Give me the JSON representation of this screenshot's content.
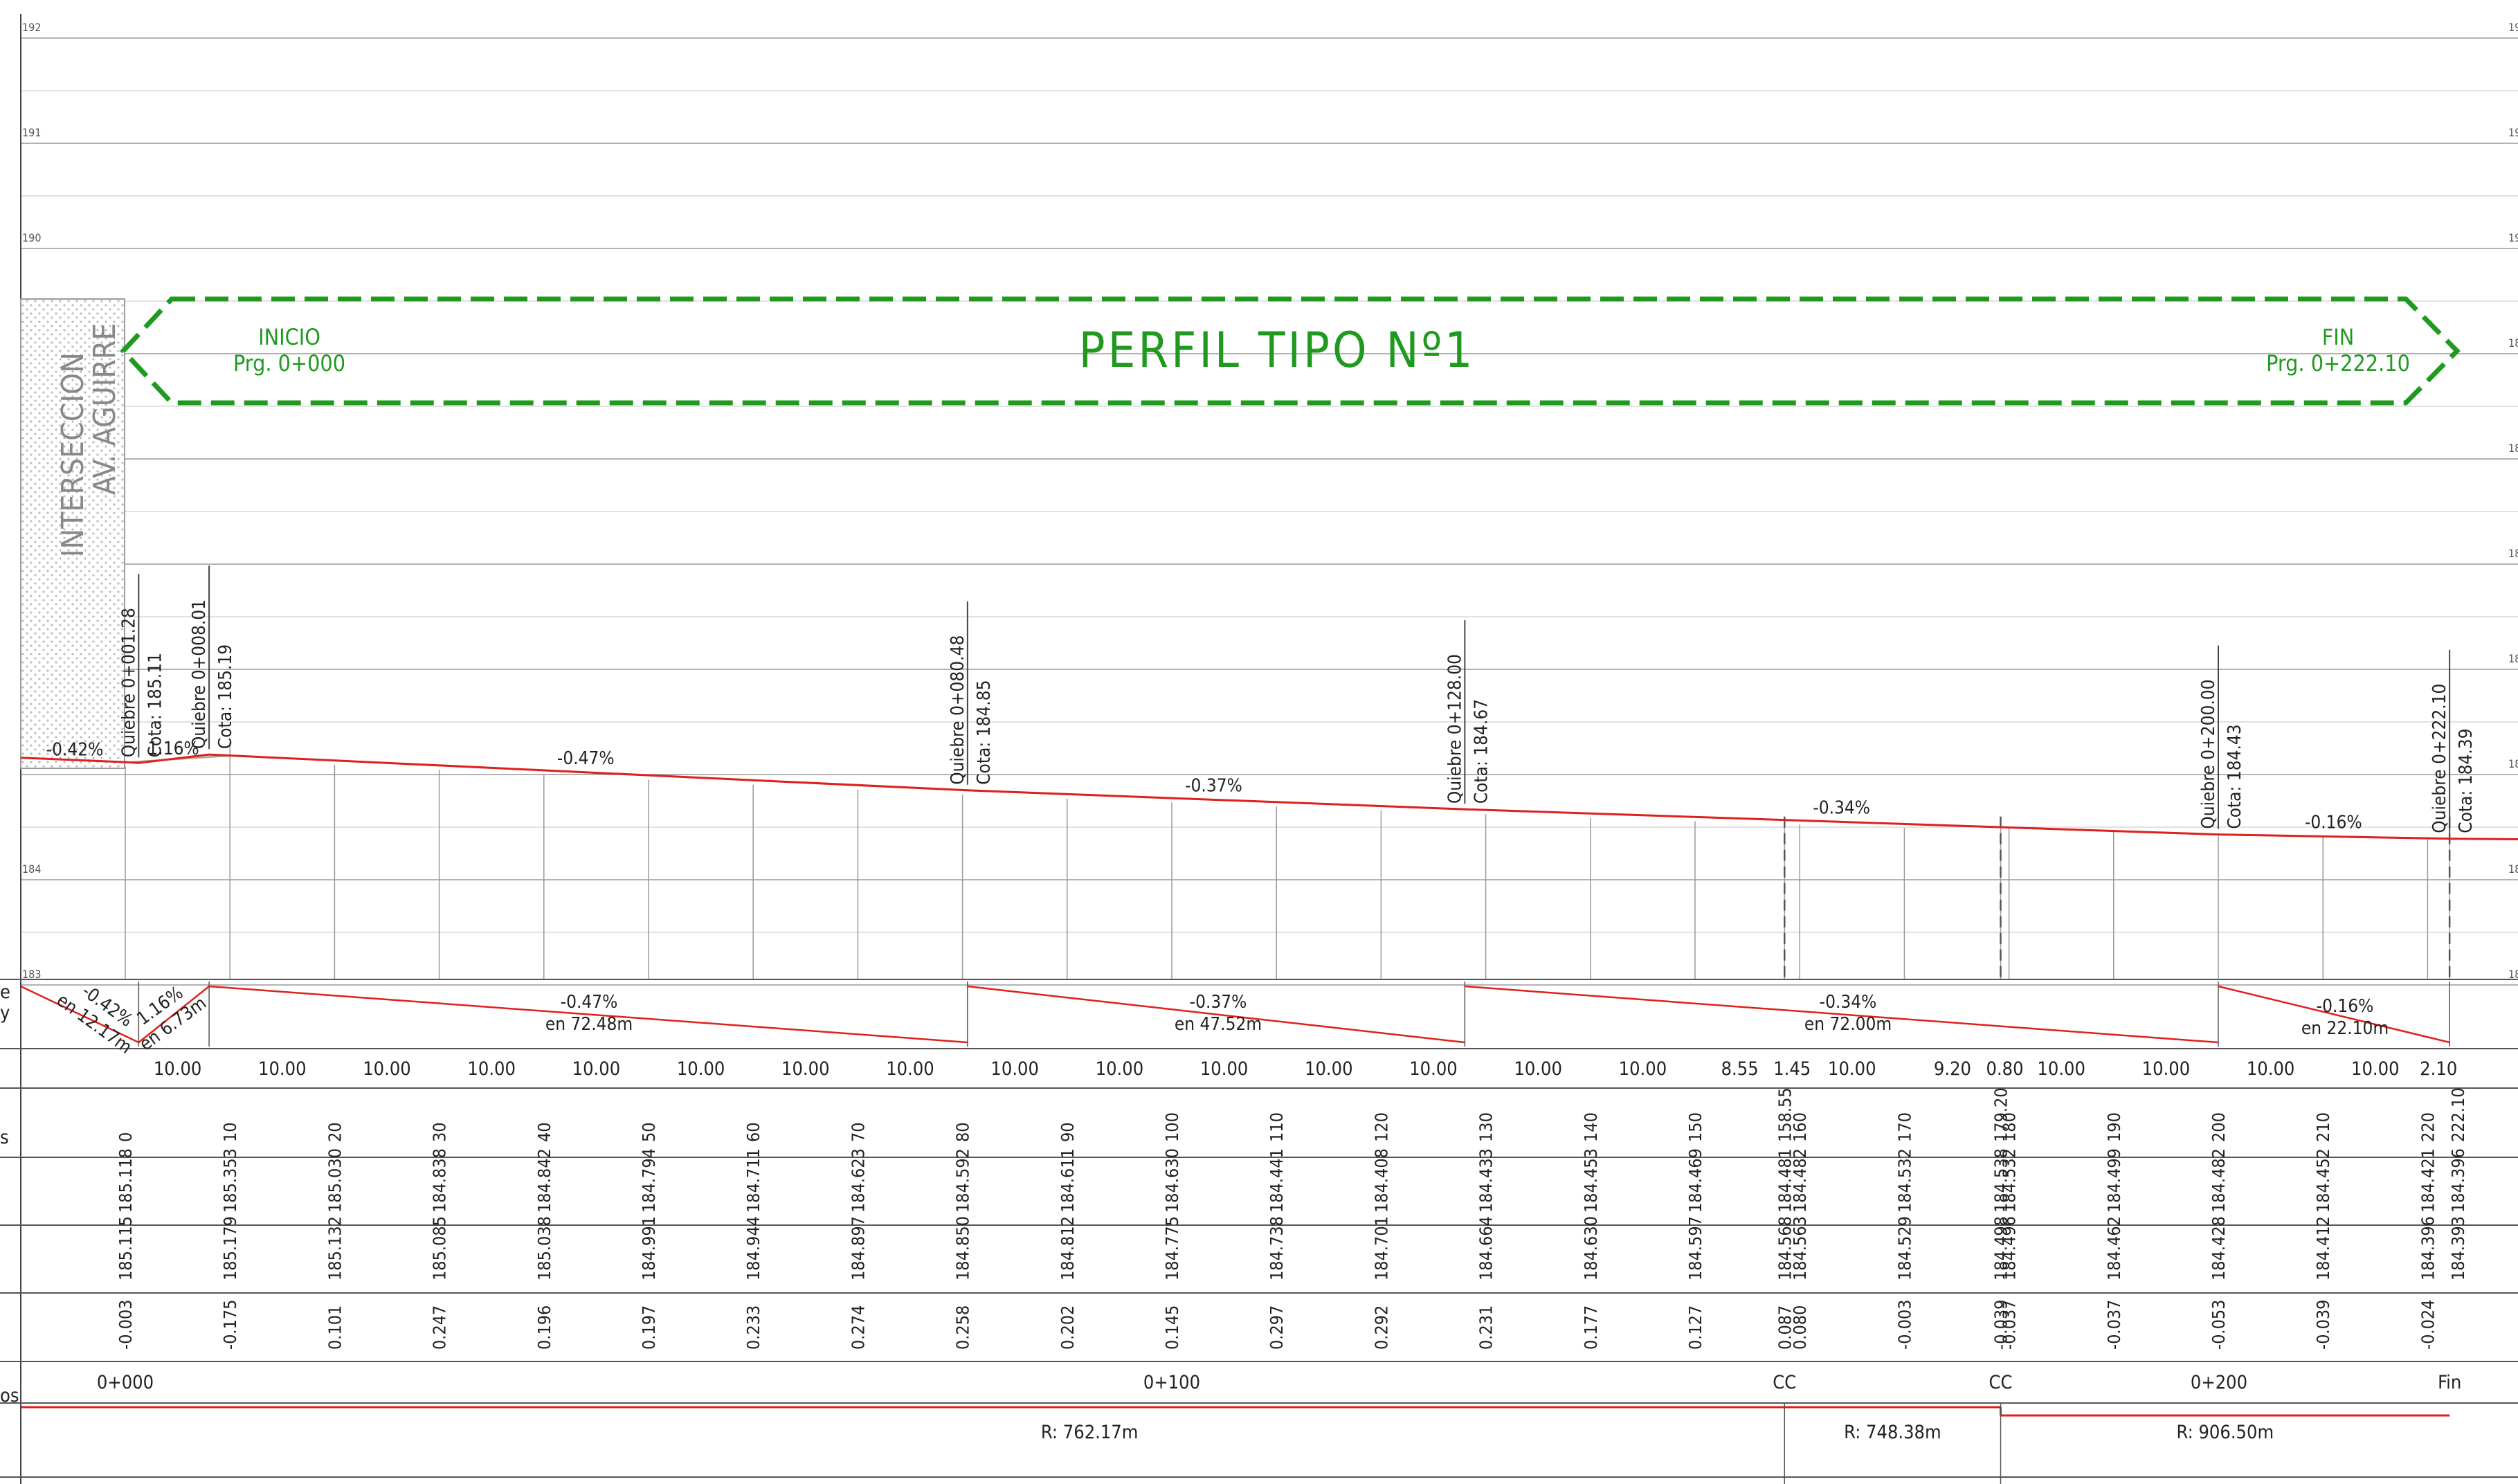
{
  "banner": {
    "title": "PERFIL  TIPO  Nº1",
    "inicio_label": "INICIO",
    "inicio_prg": "Prg.  0+000",
    "fin_label": "FIN",
    "fin_prg": "Prg.  0+222.10",
    "color": "#1f9a1f"
  },
  "intersection": {
    "line1": "INTERSECCION",
    "line2": "AV. AGUIRRE"
  },
  "elevation_scale": [
    "192",
    "191",
    "190",
    "189",
    "188",
    "187",
    "186",
    "185",
    "184",
    "183"
  ],
  "left_edge_labels": [
    "e",
    "y",
    "s",
    "os"
  ],
  "quiebres": [
    {
      "label": "Quiebre  0+001.28",
      "cota": "Cota:  185.11"
    },
    {
      "label": "Quiebre  0+008.01",
      "cota": "Cota:  185.19"
    },
    {
      "label": "Quiebre  0+080.48",
      "cota": "Cota:  184.85"
    },
    {
      "label": "Quiebre  0+128.00",
      "cota": "Cota:  184.67"
    },
    {
      "label": "Quiebre  0+200.00",
      "cota": "Cota:  184.43"
    },
    {
      "label": "Quiebre  0+222.10",
      "cota": "Cota:  184.39"
    }
  ],
  "profile_slopes": [
    "-0.42%",
    "1.16%",
    "-0.47%",
    "-0.37%",
    "-0.34%",
    "-0.16%"
  ],
  "slope_band": [
    {
      "pct": "-0.42%",
      "len": "en  12.17m"
    },
    {
      "pct": "1.16%",
      "len": "en  6.73m"
    },
    {
      "pct": "-0.47%",
      "len": "en  72.48m"
    },
    {
      "pct": "-0.37%",
      "len": "en  47.52m"
    },
    {
      "pct": "-0.34%",
      "len": "en  72.00m"
    },
    {
      "pct": "-0.16%",
      "len": "en  22.10m"
    }
  ],
  "distances": [
    "10.00",
    "10.00",
    "10.00",
    "10.00",
    "10.00",
    "10.00",
    "10.00",
    "10.00",
    "10.00",
    "10.00",
    "10.00",
    "10.00",
    "10.00",
    "10.00",
    "10.00",
    "8.55",
    "1.45",
    "10.00",
    "9.20",
    "0.80",
    "10.00",
    "10.00",
    "10.00",
    "10.00",
    "2.10"
  ],
  "stations": [
    "0",
    "10",
    "20",
    "30",
    "40",
    "50",
    "60",
    "70",
    "80",
    "90",
    "100",
    "110",
    "120",
    "130",
    "140",
    "150",
    "158.55",
    "160",
    "170",
    "179.20",
    "180",
    "190",
    "200",
    "210",
    "220",
    "222.10"
  ],
  "cota_rasante": [
    "185.118",
    "185.353",
    "185.030",
    "184.838",
    "184.842",
    "184.794",
    "184.711",
    "184.623",
    "184.592",
    "184.611",
    "184.630",
    "184.441",
    "184.408",
    "184.433",
    "184.453",
    "184.469",
    "184.481",
    "184.482",
    "184.532",
    "184.538",
    "184.532",
    "184.499",
    "184.482",
    "184.452",
    "184.421",
    "184.396"
  ],
  "cota_terreno": [
    "185.115",
    "185.179",
    "185.132",
    "185.085",
    "185.038",
    "184.991",
    "184.944",
    "184.897",
    "184.850",
    "184.812",
    "184.775",
    "184.738",
    "184.701",
    "184.664",
    "184.630",
    "184.597",
    "184.568",
    "184.563",
    "184.529",
    "184.498",
    "184.496",
    "184.462",
    "184.428",
    "184.412",
    "184.396",
    "184.393"
  ],
  "diferencias": [
    "-0.003",
    "-0.175",
    "0.101",
    "0.247",
    "0.196",
    "0.197",
    "0.233",
    "0.274",
    "0.258",
    "0.202",
    "0.145",
    "0.297",
    "0.292",
    "0.231",
    "0.177",
    "0.127",
    "0.087",
    "0.080",
    "-0.003",
    "-0.039",
    "-0.037",
    "-0.037",
    "-0.053",
    "-0.039",
    "-0.024",
    ""
  ],
  "progresiva_marks": [
    "0+000",
    "0+100",
    "CC",
    "CC",
    "0+200",
    "Fin"
  ],
  "curves": [
    {
      "label": "R:  762.17m"
    },
    {
      "label": "R:  748.38m"
    },
    {
      "label": "R:  906.50m"
    }
  ],
  "colors": {
    "profile": "#e0201c",
    "terrain": "#a9a594",
    "grid": "#9a9a9a",
    "banner": "#1f9a1f"
  }
}
